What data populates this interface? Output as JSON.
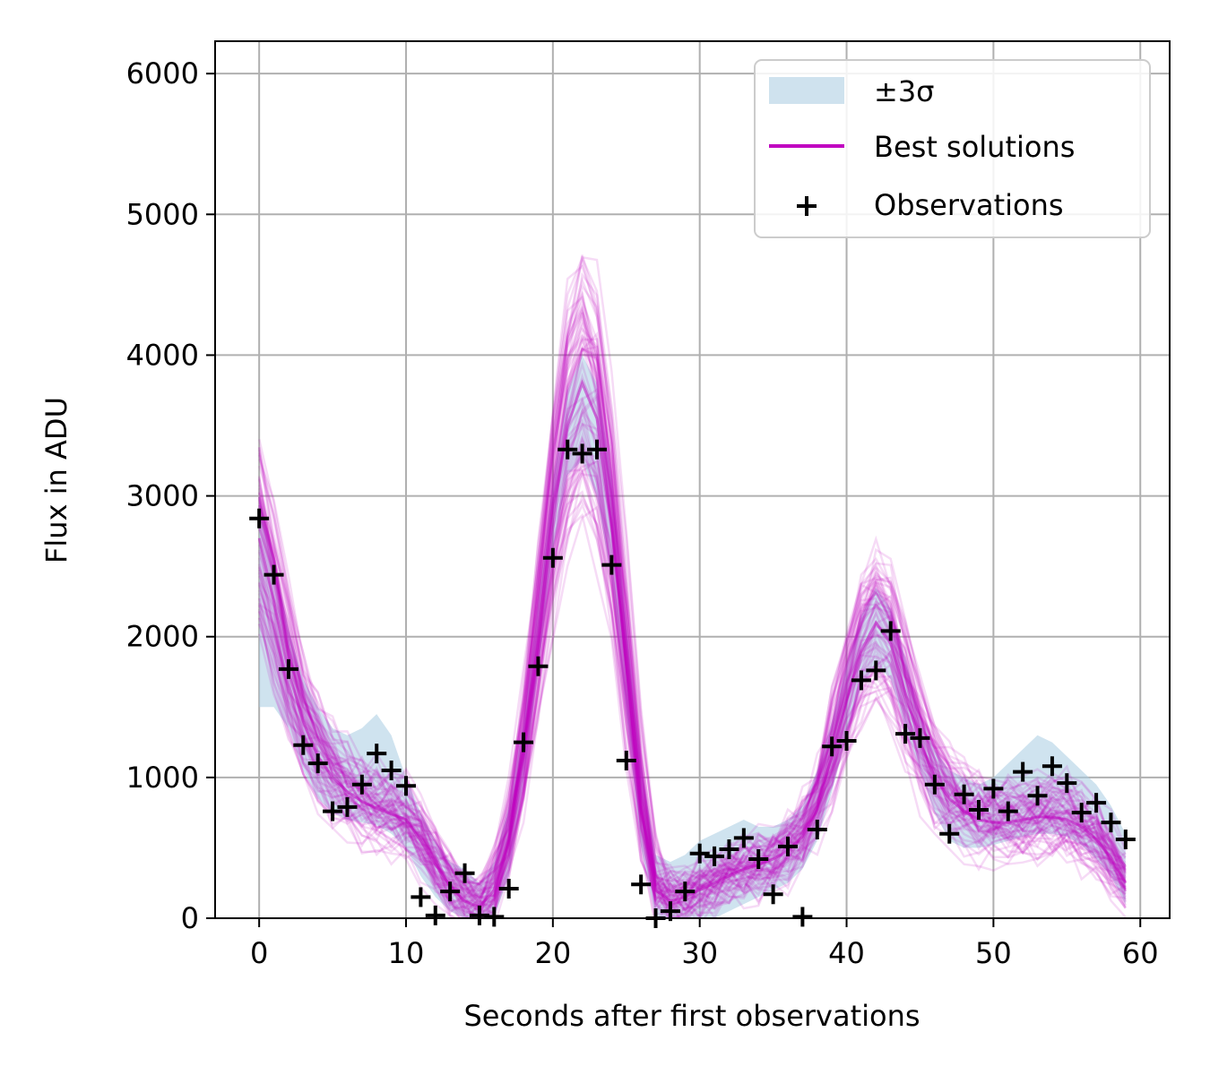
{
  "chart_data": {
    "type": "line",
    "title": "",
    "xlabel": "Seconds after first observations",
    "ylabel": "Flux in ADU",
    "xlim": [
      -3,
      62
    ],
    "ylim": [
      0,
      6230
    ],
    "xticks": [
      0,
      10,
      20,
      30,
      40,
      50,
      60
    ],
    "yticks": [
      0,
      1000,
      2000,
      3000,
      4000,
      5000,
      6000
    ],
    "grid": true,
    "legend_position": "top-right",
    "legend": [
      {
        "label": "±3σ",
        "kind": "band",
        "color": "#cfe2ee"
      },
      {
        "label": "Best solutions",
        "kind": "line",
        "color": "#c000c0"
      },
      {
        "label": "Observations",
        "kind": "marker",
        "marker": "+",
        "color": "#000000"
      }
    ],
    "band_color": "#a8cce2",
    "solutions_color": "#bf00bf",
    "observations_color": "#000000",
    "best_solution_mean": {
      "x": [
        0,
        1,
        2,
        3,
        4,
        5,
        6,
        7,
        8,
        9,
        10,
        11,
        12,
        13,
        14,
        15,
        16,
        17,
        18,
        19,
        20,
        21,
        22,
        23,
        24,
        25,
        26,
        27,
        28,
        29,
        30,
        31,
        32,
        33,
        34,
        35,
        36,
        37,
        38,
        39,
        40,
        41,
        42,
        43,
        44,
        45,
        46,
        47,
        48,
        49,
        50,
        51,
        52,
        53,
        54,
        55,
        56,
        57,
        58,
        59
      ],
      "y": [
        2700,
        2250,
        1750,
        1400,
        1150,
        1000,
        900,
        830,
        780,
        740,
        700,
        550,
        380,
        230,
        120,
        80,
        200,
        550,
        1150,
        2000,
        2850,
        3500,
        3800,
        3550,
        2800,
        1800,
        800,
        200,
        120,
        150,
        200,
        250,
        300,
        350,
        380,
        420,
        480,
        580,
        800,
        1150,
        1550,
        1900,
        2100,
        1950,
        1600,
        1250,
        1000,
        850,
        760,
        700,
        680,
        680,
        700,
        720,
        720,
        700,
        650,
        560,
        430,
        250
      ]
    },
    "sigma_band": {
      "x": [
        0,
        1,
        2,
        3,
        4,
        5,
        6,
        7,
        8,
        9,
        10,
        11,
        12,
        13,
        14,
        15,
        16,
        17,
        18,
        19,
        20,
        21,
        22,
        23,
        24,
        25,
        26,
        27,
        28,
        29,
        30,
        31,
        32,
        33,
        34,
        35,
        36,
        37,
        38,
        39,
        40,
        41,
        42,
        43,
        44,
        45,
        46,
        47,
        48,
        49,
        50,
        51,
        52,
        53,
        54,
        55,
        56,
        57,
        58,
        59
      ],
      "lower": [
        1500,
        1500,
        1350,
        1050,
        850,
        750,
        700,
        680,
        660,
        600,
        500,
        300,
        150,
        50,
        0,
        0,
        0,
        300,
        950,
        1750,
        2600,
        3150,
        3250,
        3000,
        2400,
        1450,
        500,
        0,
        0,
        0,
        0,
        0,
        50,
        100,
        150,
        200,
        250,
        350,
        550,
        900,
        1300,
        1650,
        1800,
        1700,
        1350,
        1050,
        750,
        550,
        500,
        500,
        520,
        550,
        580,
        600,
        600,
        580,
        520,
        420,
        300,
        100
      ],
      "upper": [
        3000,
        2550,
        2050,
        1700,
        1500,
        1350,
        1300,
        1350,
        1450,
        1300,
        1000,
        750,
        550,
        400,
        350,
        250,
        400,
        800,
        1400,
        2250,
        3100,
        3750,
        4000,
        3800,
        3150,
        2100,
        1100,
        450,
        400,
        450,
        550,
        600,
        650,
        700,
        650,
        650,
        700,
        800,
        1050,
        1400,
        1800,
        2150,
        2350,
        2200,
        1850,
        1450,
        1200,
        1050,
        1000,
        950,
        1000,
        1100,
        1200,
        1300,
        1250,
        1150,
        1050,
        950,
        800,
        600
      ]
    },
    "series": [
      {
        "name": "Observations",
        "x": [
          0,
          1,
          2,
          3,
          4,
          5,
          6,
          7,
          8,
          9,
          10,
          11,
          12,
          13,
          14,
          15,
          16,
          17,
          18,
          19,
          20,
          21,
          22,
          23,
          24,
          25,
          26,
          27,
          28,
          29,
          30,
          31,
          32,
          33,
          34,
          35,
          36,
          37,
          38,
          39,
          40,
          41,
          42,
          43,
          44,
          45,
          46,
          47,
          48,
          49,
          50,
          51,
          52,
          53,
          54,
          55,
          56,
          57,
          58,
          59
        ],
        "y": [
          2840,
          2440,
          1770,
          1230,
          1100,
          760,
          790,
          950,
          1170,
          1050,
          940,
          150,
          20,
          190,
          320,
          20,
          10,
          210,
          1250,
          1790,
          2560,
          3330,
          3300,
          3330,
          2510,
          1120,
          240,
          0,
          50,
          190,
          460,
          440,
          490,
          570,
          420,
          170,
          510,
          10,
          630,
          1220,
          1260,
          1690,
          1760,
          2040,
          1310,
          1280,
          950,
          600,
          880,
          770,
          920,
          760,
          1040,
          870,
          1080,
          960,
          750,
          820,
          680,
          560
        ]
      }
    ]
  }
}
